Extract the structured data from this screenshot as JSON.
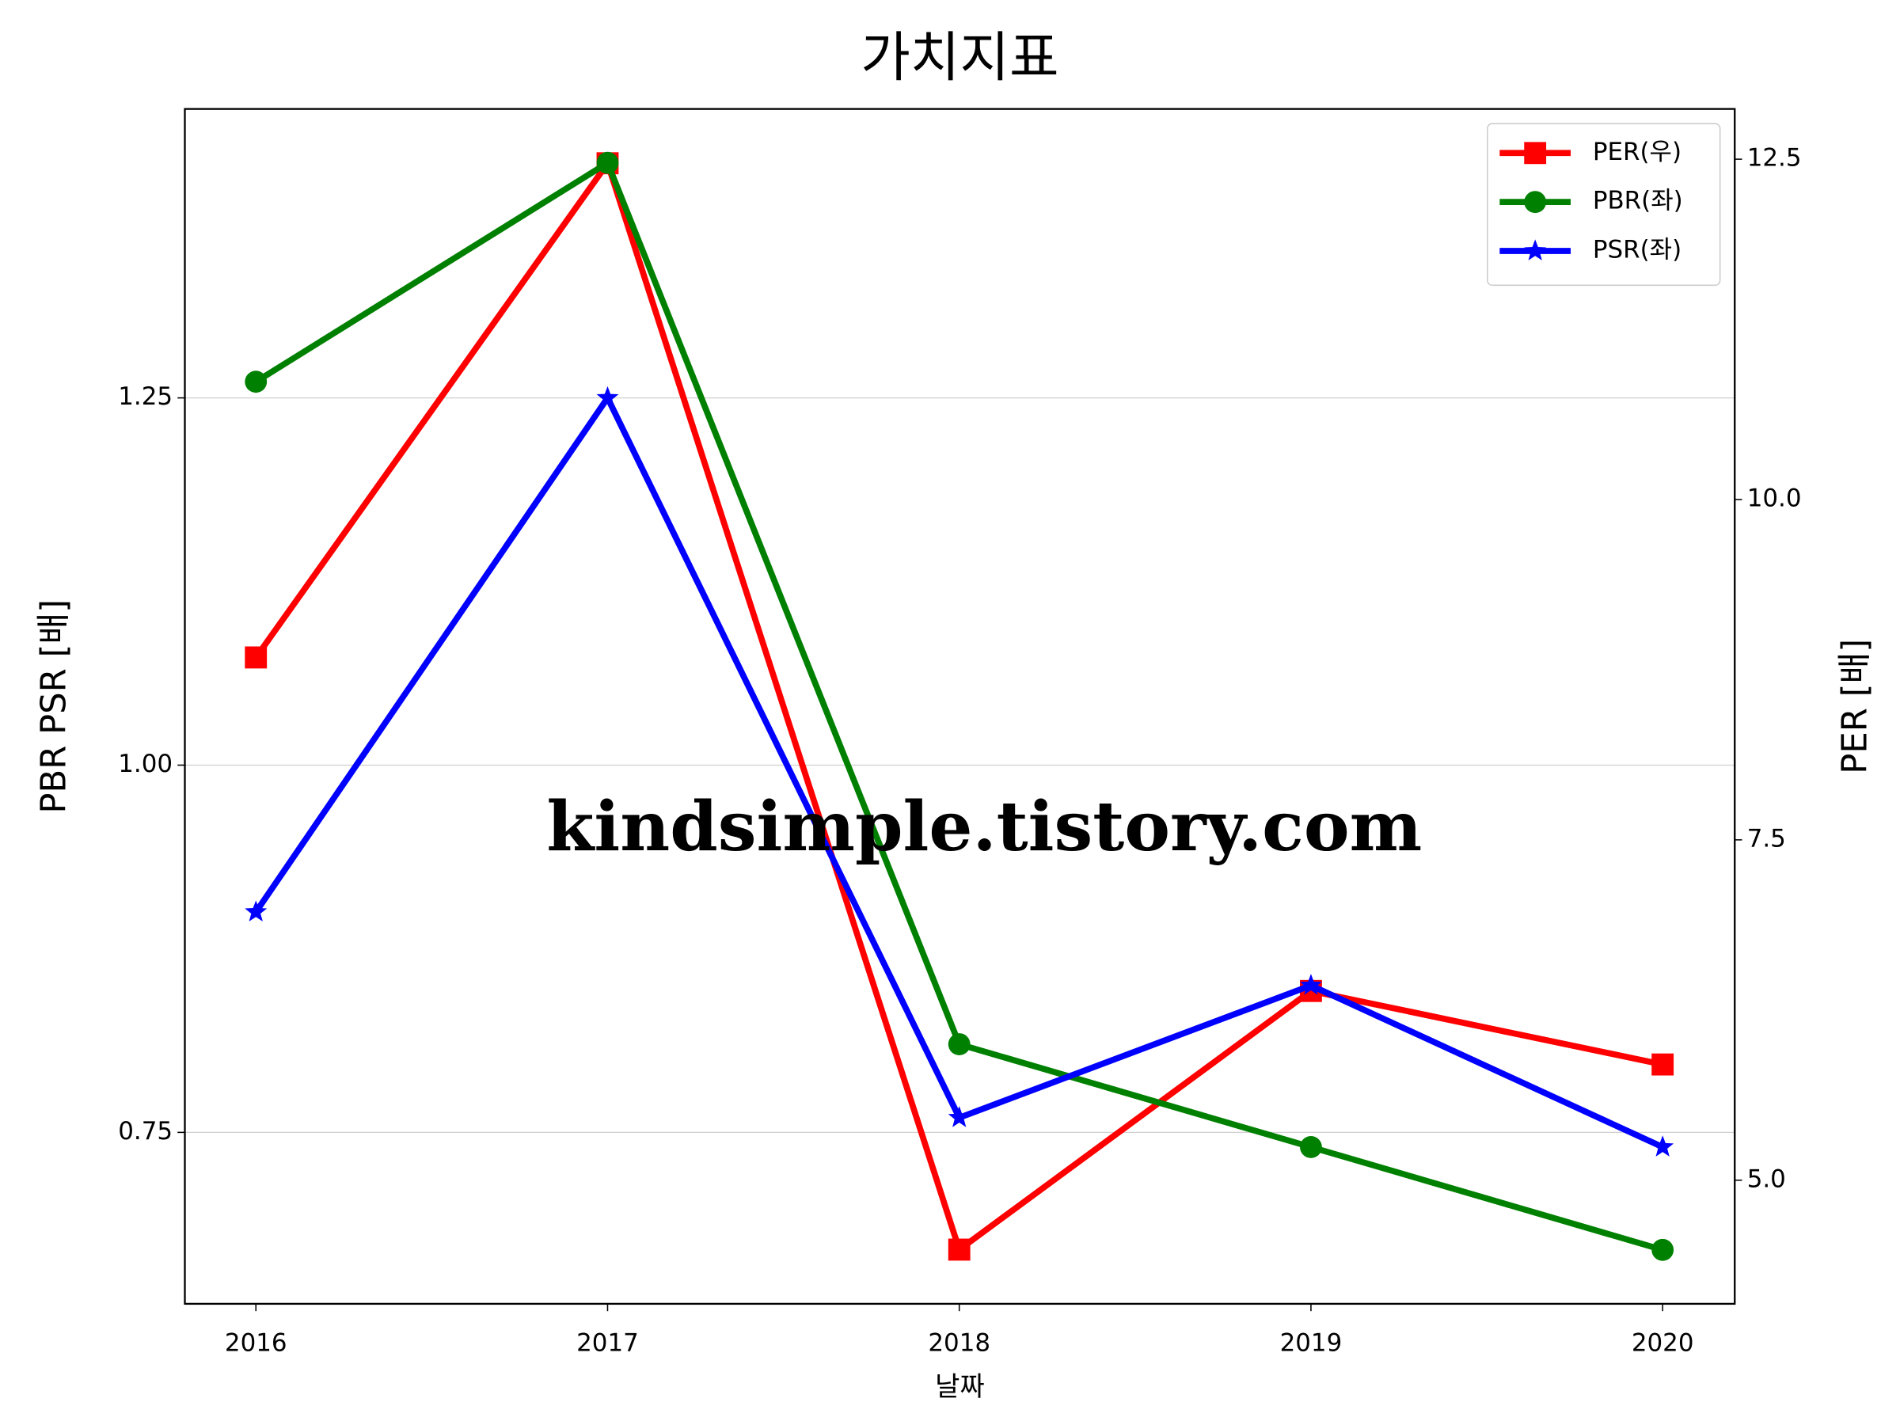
{
  "chart_data": {
    "type": "line",
    "title": "가치지표",
    "x_label": "날짜",
    "y_label": "PBR PSR [배]",
    "y_label_color": "#008000",
    "y2_label": "PER [배]",
    "y2_label_color": "#ff0000",
    "annotation": "kindsimple.tistory.com",
    "annotation_color": "#e0a6ea",
    "x": [
      2016,
      2017,
      2018,
      2019,
      2020
    ],
    "xlim": [
      2015.798,
      2020.205
    ],
    "xticks": [
      2016,
      2017,
      2018,
      2019,
      2020
    ],
    "ylim": [
      0.6333,
      1.4467
    ],
    "yticks": [
      1.25,
      {
        "value": 1,
        "label": "1.00"
      },
      0.75
    ],
    "y2lim": [
      4.092,
      12.869
    ],
    "y2ticks": [
      12.5,
      {
        "value": 10,
        "label": "10.0"
      },
      7.5,
      {
        "value": 5,
        "label": "5.0"
      }
    ],
    "grid": true,
    "legend": "upper right",
    "series": [
      {
        "name": "PER(우)",
        "color": "#ff0000",
        "marker": "square",
        "axis": "y2",
        "values": [
          8.84,
          12.47,
          4.49,
          6.39,
          5.85
        ]
      },
      {
        "name": "PBR(좌)",
        "color": "#008000",
        "marker": "circle",
        "values": [
          1.261,
          1.41,
          0.81,
          0.74,
          0.67
        ]
      },
      {
        "name": "PSR(좌)",
        "color": "#0000ff",
        "marker": "star",
        "values": [
          0.9,
          1.25,
          0.76,
          0.85,
          0.74
        ]
      }
    ]
  }
}
